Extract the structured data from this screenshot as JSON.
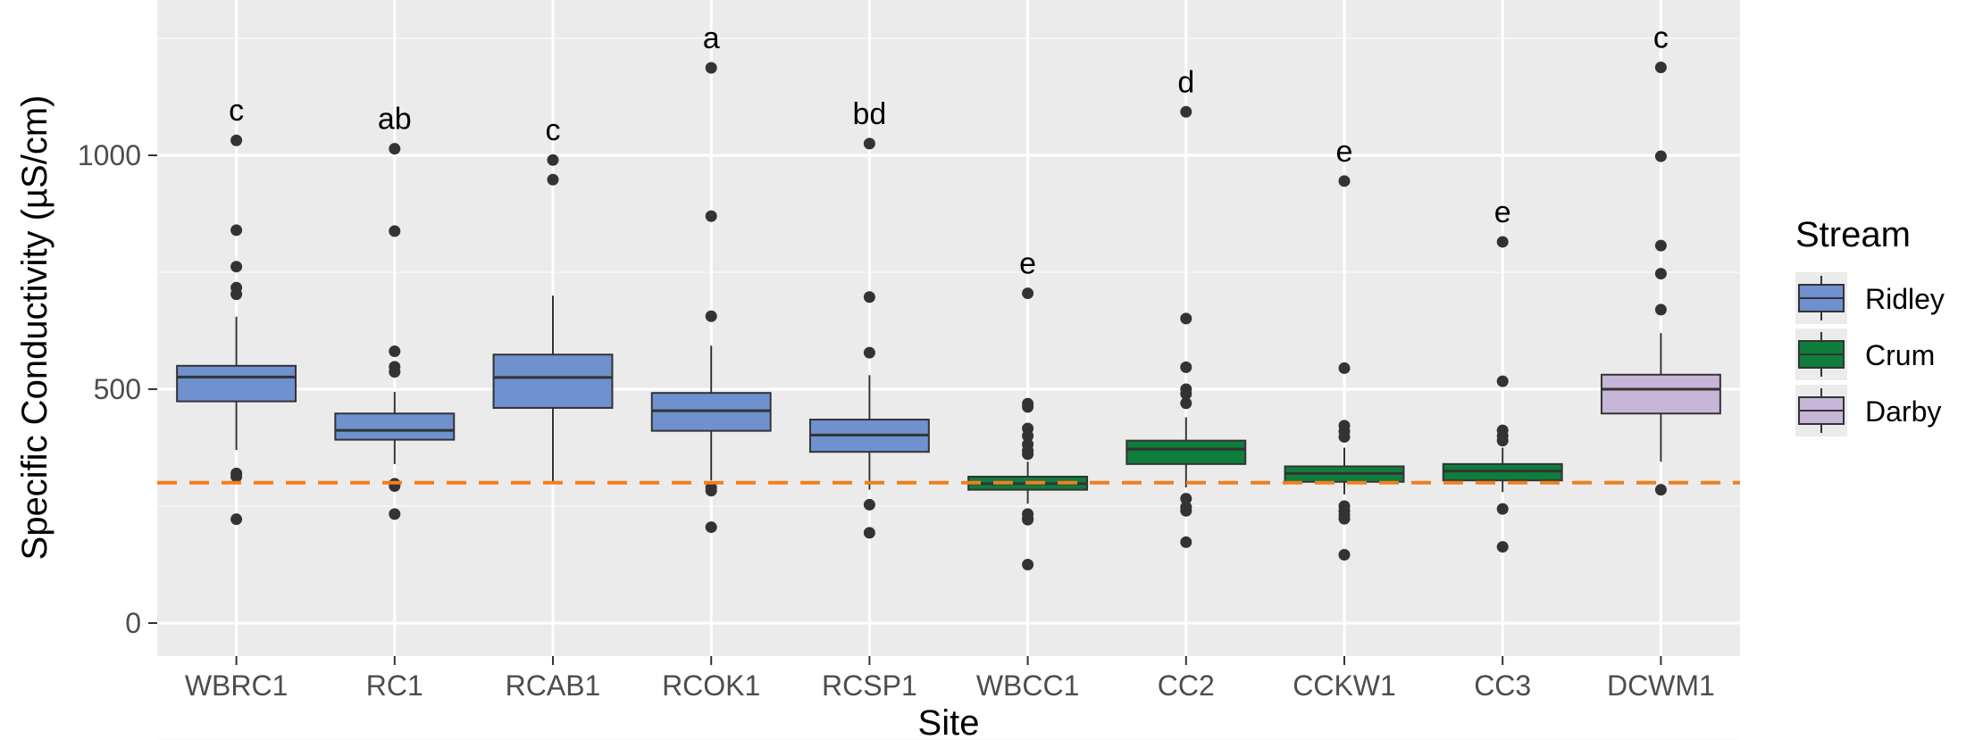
{
  "chart_data": {
    "type": "boxplot",
    "title": "",
    "xlabel": "Site",
    "ylabel": "Specific Conductivity (µS/cm)",
    "ylim": [
      -60,
      1310
    ],
    "yticks": [
      0,
      500,
      1000
    ],
    "reference_line": {
      "y": 300,
      "style": "dashed",
      "color": "#f07f1e"
    },
    "legend": {
      "title": "Stream",
      "position": "right",
      "entries": [
        {
          "name": "Ridley",
          "color": "#6f91cf"
        },
        {
          "name": "Crum",
          "color": "#0f7d3c"
        },
        {
          "name": "Darby",
          "color": "#c7b6d8"
        }
      ]
    },
    "boxes": [
      {
        "site": "WBRC1",
        "stream": "Ridley",
        "letter": "c",
        "min": 370,
        "q1": 474,
        "median": 526,
        "q3": 550,
        "max": 655,
        "outliers": [
          1032,
          840,
          762,
          717,
          703,
          320,
          313,
          222
        ]
      },
      {
        "site": "RC1",
        "stream": "Ridley",
        "letter": "ab",
        "min": 340,
        "q1": 392,
        "median": 412,
        "q3": 448,
        "max": 494,
        "outliers": [
          1014,
          838,
          581,
          548,
          537,
          298,
          293,
          233
        ]
      },
      {
        "site": "RCAB1",
        "stream": "Ridley",
        "letter": "c",
        "min": 302,
        "q1": 460,
        "median": 525,
        "q3": 574,
        "max": 700,
        "outliers": [
          990,
          948
        ]
      },
      {
        "site": "RCOK1",
        "stream": "Ridley",
        "letter": "a",
        "min": 305,
        "q1": 411,
        "median": 454,
        "q3": 492,
        "max": 593,
        "outliers": [
          1187,
          870,
          656,
          290,
          283,
          205
        ]
      },
      {
        "site": "RCSP1",
        "stream": "Ridley",
        "letter": "bd",
        "min": 285,
        "q1": 366,
        "median": 402,
        "q3": 435,
        "max": 530,
        "outliers": [
          1025,
          697,
          578,
          253,
          193
        ]
      },
      {
        "site": "WBCC1",
        "stream": "Crum",
        "letter": "e",
        "min": 255,
        "q1": 285,
        "median": 298,
        "q3": 313,
        "max": 345,
        "outliers": [
          705,
          469,
          462,
          416,
          400,
          382,
          369,
          361,
          233,
          224,
          221,
          125
        ]
      },
      {
        "site": "CC2",
        "stream": "Crum",
        "letter": "d",
        "min": 290,
        "q1": 340,
        "median": 372,
        "q3": 390,
        "max": 440,
        "outliers": [
          1093,
          651,
          547,
          500,
          490,
          470,
          266,
          248,
          240,
          173
        ]
      },
      {
        "site": "CCKW1",
        "stream": "Crum",
        "letter": "e",
        "min": 275,
        "q1": 302,
        "median": 320,
        "q3": 335,
        "max": 375,
        "outliers": [
          945,
          545,
          422,
          410,
          398,
          250,
          240,
          231,
          223,
          146
        ]
      },
      {
        "site": "CC3",
        "stream": "Crum",
        "letter": "e",
        "min": 280,
        "q1": 305,
        "median": 325,
        "q3": 340,
        "max": 375,
        "outliers": [
          815,
          517,
          412,
          400,
          390,
          244,
          163
        ]
      },
      {
        "site": "DCWM1",
        "stream": "Darby",
        "letter": "c",
        "min": 345,
        "q1": 448,
        "median": 500,
        "q3": 531,
        "max": 620,
        "outliers": [
          1188,
          998,
          807,
          747,
          670,
          285
        ]
      }
    ]
  }
}
